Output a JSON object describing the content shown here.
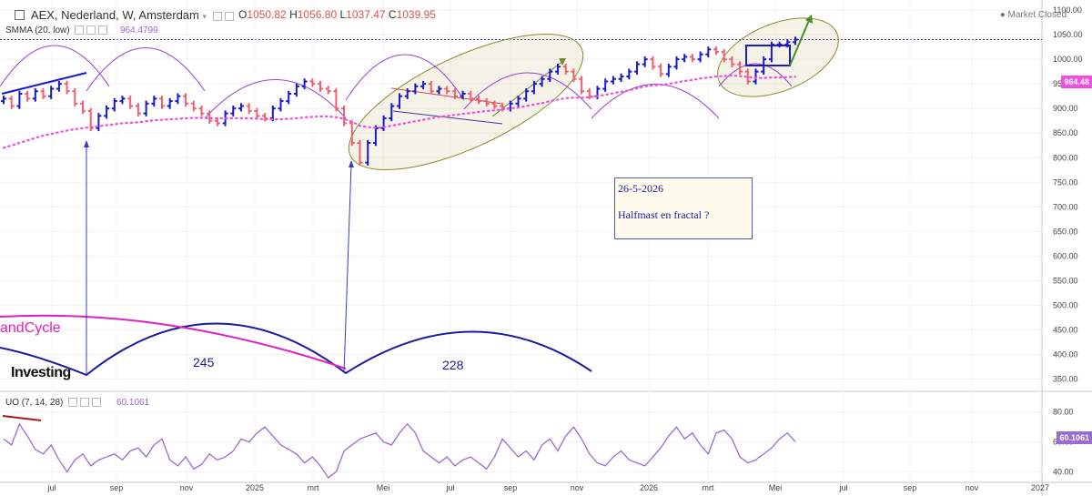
{
  "header": {
    "symbol": "AEX, Nederland, W, Amsterdam",
    "ohlc": {
      "O_label": "O",
      "O": "1050.82",
      "H_label": "H",
      "H": "1056.80",
      "L_label": "L",
      "L": "1037.47",
      "C_label": "C",
      "C": "1039.95"
    },
    "indicator": "SMMA (20, low)",
    "indicator_value": "964.4799",
    "market_status": "Market Closed",
    "oscillator": "UO (7, 14, 28)",
    "oscillator_value": "60.1061",
    "logo": "Investing",
    "cycle_label": "andCycle"
  },
  "annotation": {
    "date": "26-5-2026",
    "text": "Halfmast en fractal ?"
  },
  "cycle_counts": [
    "245",
    "228"
  ],
  "price_tags": {
    "smma": "964.48",
    "uo": "60.1061"
  },
  "colors": {
    "up": "#1a1acc",
    "down": "#f06070",
    "smma": "#f050e0",
    "uo": "#9a6bd2",
    "cycle": "#1a1aa0",
    "cycle_long": "#e020c0",
    "ellipse": "#8a8a2a"
  },
  "chart_data": {
    "type": "ohlc-bar",
    "x_ticks": [
      "jul",
      "sep",
      "nov",
      "2025",
      "mrt",
      "Mei",
      "jul",
      "sep",
      "nov",
      "2026",
      "mrt",
      "Mei",
      "jul",
      "sep",
      "nov",
      "2027"
    ],
    "y_ticks": [
      1100,
      1050,
      1000,
      950,
      900,
      850,
      800,
      750,
      700,
      650,
      600,
      550,
      500,
      450,
      400,
      350
    ],
    "ylim": [
      325,
      1115
    ],
    "close": [
      920,
      905,
      930,
      920,
      935,
      925,
      940,
      950,
      935,
      910,
      895,
      860,
      885,
      900,
      915,
      920,
      905,
      890,
      910,
      920,
      905,
      915,
      925,
      910,
      900,
      890,
      875,
      870,
      890,
      900,
      905,
      895,
      885,
      880,
      900,
      915,
      930,
      945,
      955,
      950,
      940,
      935,
      900,
      870,
      830,
      790,
      830,
      860,
      880,
      905,
      925,
      935,
      945,
      950,
      935,
      940,
      935,
      925,
      930,
      920,
      915,
      910,
      905,
      900,
      910,
      920,
      935,
      950,
      960,
      975,
      985,
      975,
      960,
      935,
      925,
      940,
      955,
      960,
      965,
      975,
      990,
      1000,
      985,
      970,
      985,
      1000,
      1005,
      1000,
      1010,
      1020,
      1015,
      1000,
      990,
      975,
      955,
      975,
      1000,
      1030,
      1030,
      1035,
      1040
    ],
    "smma": [
      820,
      825,
      830,
      835,
      840,
      845,
      848,
      852,
      855,
      858,
      860,
      862,
      864,
      866,
      868,
      870,
      871,
      872,
      874,
      876,
      877,
      878,
      879,
      880,
      881,
      881,
      880,
      880,
      880,
      880,
      880,
      880,
      879,
      878,
      878,
      878,
      879,
      880,
      882,
      883,
      884,
      884,
      882,
      879,
      873,
      865,
      862,
      861,
      862,
      865,
      868,
      871,
      874,
      877,
      880,
      883,
      885,
      887,
      889,
      891,
      893,
      895,
      896,
      898,
      900,
      902,
      905,
      908,
      911,
      915,
      918,
      921,
      922,
      922,
      923,
      925,
      928,
      931,
      934,
      937,
      941,
      945,
      947,
      948,
      950,
      953,
      956,
      958,
      961,
      963,
      965,
      966,
      967,
      966,
      964,
      962,
      962,
      963,
      963,
      964,
      964.48
    ],
    "uo_ylim": [
      33,
      92
    ],
    "uo_ticks": [
      80,
      60,
      40
    ],
    "uo": [
      62,
      58,
      72,
      64,
      55,
      52,
      58,
      48,
      40,
      48,
      52,
      44,
      48,
      50,
      52,
      48,
      54,
      56,
      50,
      58,
      62,
      48,
      44,
      50,
      42,
      45,
      52,
      48,
      50,
      54,
      62,
      60,
      66,
      70,
      64,
      58,
      55,
      52,
      46,
      50,
      44,
      36,
      40,
      54,
      58,
      62,
      64,
      66,
      60,
      58,
      66,
      72,
      66,
      54,
      50,
      46,
      50,
      44,
      48,
      50,
      46,
      42,
      50,
      62,
      56,
      50,
      54,
      48,
      58,
      62,
      54,
      64,
      70,
      62,
      52,
      46,
      44,
      50,
      54,
      48,
      46,
      44,
      50,
      56,
      64,
      70,
      62,
      66,
      58,
      52,
      66,
      68,
      62,
      50,
      46,
      48,
      52,
      56,
      62,
      66,
      60.1
    ]
  }
}
